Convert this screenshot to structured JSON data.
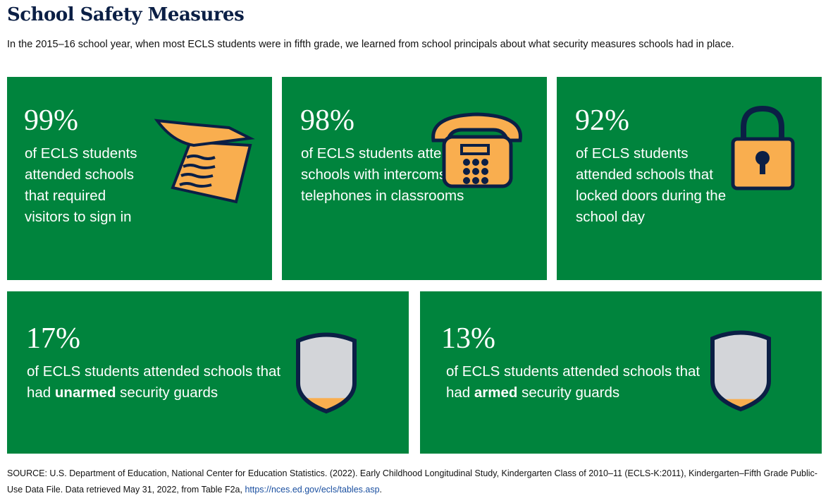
{
  "title": "School Safety Measures",
  "subtitle": "In the 2015–16 school year, when most ECLS students were in fifth grade, we learned from school principals about what security measures schools had in place.",
  "colors": {
    "card": "#00843d",
    "accent": "#f9ae4f",
    "navy": "#0b1f45",
    "shield": "#d3d5d9"
  },
  "cards": [
    {
      "pct": "99%",
      "text": "of ECLS students attended schools that required visitors to sign in",
      "icon": "notepad-icon"
    },
    {
      "pct": "98%",
      "text": "of ECLS students attended schools with intercoms or telephones in classrooms",
      "icon": "telephone-icon"
    },
    {
      "pct": "92%",
      "text": "of ECLS students attended schools that locked doors during the school day",
      "icon": "padlock-icon"
    },
    {
      "pct": "17%",
      "text_before": "of ECLS students attended schools that had ",
      "text_bold": "unarmed",
      "text_after": " security guards",
      "icon": "shield-icon",
      "fill": 0.17
    },
    {
      "pct": "13%",
      "text_before": "of ECLS students attended schools that had ",
      "text_bold": "armed",
      "text_after": " security guards",
      "icon": "shield-icon",
      "fill": 0.13
    }
  ],
  "source": {
    "text": "SOURCE: U.S. Department of Education, National Center for Education Statistics. (2022). Early Childhood Longitudinal Study, Kindergarten Class of 2010–11 (ECLS-K:2011), Kindergarten–Fifth Grade Public-Use Data File. Data retrieved May 31, 2022, from Table F2a, ",
    "link": "https://nces.ed.gov/ecls/tables.asp",
    "end": "."
  }
}
